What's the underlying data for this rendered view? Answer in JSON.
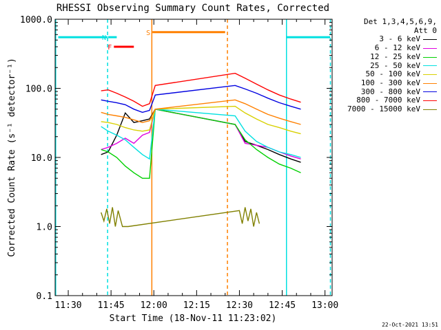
{
  "chart_data": {
    "type": "line",
    "title": "RHESSI Observing Summary Count Rates, Corrected",
    "xlabel": "Start Time (18-Nov-11 11:23:02)",
    "ylabel": "Corrected Count Rate (s⁻¹ detector⁻¹)",
    "yscale": "log",
    "ylim": [
      0.1,
      1000
    ],
    "xlim_minutes_after_1130": [
      -4.6,
      92.5
    ],
    "x_ticks": [
      "11:30",
      "11:45",
      "12:00",
      "12:15",
      "12:30",
      "12:45",
      "13:00"
    ],
    "x_tick_minutes": [
      0,
      15,
      30,
      45,
      60,
      75,
      90
    ],
    "y_ticks": [
      "1000.0",
      "100.0",
      "10.0",
      "1.0",
      "0.1"
    ],
    "y_tick_values": [
      1000,
      100,
      10,
      1,
      0.1
    ],
    "legend_header": [
      "Det 1,3,4,5,6,9,",
      "Att 0"
    ],
    "legend_position": "top-right, outside plot",
    "series": [
      {
        "name": "3 - 6 keV",
        "color": "#000000",
        "x": [
          11.5,
          14,
          17,
          20,
          23,
          26,
          28.5,
          30.5,
          58.5,
          62,
          66,
          70,
          74,
          78,
          81.5
        ],
        "y": [
          11,
          12,
          21,
          44,
          32,
          34,
          36,
          50,
          30,
          17,
          15,
          13,
          11,
          9.5,
          8.5
        ]
      },
      {
        "name": "6 - 12 keV",
        "color": "#e000e0",
        "x": [
          11.5,
          14,
          17,
          20,
          23,
          26,
          28.5,
          30.5,
          58.5,
          62,
          66,
          70,
          74,
          78,
          81.5
        ],
        "y": [
          13,
          14,
          16,
          19,
          16,
          21,
          23,
          50,
          30,
          16,
          15,
          14,
          12,
          10.5,
          9.5
        ]
      },
      {
        "name": "12 - 25 keV",
        "color": "#00d000",
        "x": [
          11.5,
          14,
          17,
          20,
          23,
          26,
          28.5,
          30.5,
          58.5,
          62,
          66,
          70,
          74,
          78,
          81.5
        ],
        "y": [
          13,
          12,
          10,
          7.5,
          6,
          5,
          5,
          50,
          30,
          18,
          13,
          10,
          8,
          7,
          6
        ]
      },
      {
        "name": "25 - 50 keV",
        "color": "#00e0e0",
        "x": [
          11.5,
          14,
          17,
          20,
          23,
          26,
          28.5,
          30.5,
          58.5,
          62,
          66,
          70,
          74,
          78,
          81.5
        ],
        "y": [
          28,
          24,
          21,
          18,
          14,
          11,
          9.5,
          50,
          40,
          24,
          17,
          14,
          12,
          11,
          10
        ]
      },
      {
        "name": "50 - 100 keV",
        "color": "#d8d000",
        "x": [
          11.5,
          14,
          17,
          20,
          23,
          26,
          28.5,
          30.5,
          58.5,
          62,
          66,
          70,
          74,
          78,
          81.5
        ],
        "y": [
          33,
          32,
          30,
          27,
          25,
          24,
          25,
          50,
          55,
          44,
          36,
          30,
          27,
          24,
          22
        ]
      },
      {
        "name": "100 - 300 keV",
        "color": "#ff8000",
        "x": [
          11.5,
          14,
          17,
          20,
          23,
          26,
          28.5,
          30.5,
          58.5,
          62,
          66,
          70,
          74,
          78,
          81.5
        ],
        "y": [
          45,
          42,
          40,
          38,
          35,
          32,
          34,
          50,
          68,
          60,
          50,
          42,
          37,
          33,
          30
        ]
      },
      {
        "name": "300 - 800 keV",
        "color": "#0000e0",
        "x": [
          11.5,
          14,
          17,
          20,
          23,
          26,
          28.5,
          30.5,
          58.5,
          62,
          66,
          70,
          74,
          78,
          81.5
        ],
        "y": [
          68,
          65,
          62,
          58,
          50,
          45,
          48,
          80,
          110,
          98,
          85,
          72,
          62,
          55,
          50
        ]
      },
      {
        "name": "800 - 7000 keV",
        "color": "#ff0000",
        "x": [
          11.5,
          14,
          17,
          20,
          23,
          26,
          28.5,
          30.5,
          58.5,
          62,
          66,
          70,
          74,
          78,
          81.5
        ],
        "y": [
          92,
          95,
          85,
          75,
          65,
          55,
          60,
          110,
          165,
          140,
          115,
          95,
          80,
          70,
          63
        ]
      },
      {
        "name": "7000 - 15000 keV",
        "color": "#808000",
        "x": [
          11.5,
          12.5,
          13.5,
          14.5,
          15.5,
          16.5,
          17.5,
          19,
          21,
          60,
          61,
          62,
          63,
          64,
          65,
          66,
          67
        ],
        "y": [
          1.6,
          1.2,
          1.8,
          1.1,
          1.9,
          1.0,
          1.7,
          1.0,
          1.0,
          1.7,
          1.1,
          1.9,
          1.2,
          1.8,
          1.0,
          1.6,
          1.1
        ]
      }
    ],
    "markers": [
      {
        "label": "N",
        "color": "#00e0e0",
        "value": 550,
        "x": [
          14,
          17
        ]
      },
      {
        "label": "F",
        "color": "#ff0000",
        "value": 400,
        "x": [
          16,
          23
        ]
      },
      {
        "label": "S",
        "color": "#ff8000",
        "value": 650,
        "x": [
          29.5,
          55
        ]
      }
    ],
    "cyan_bars": [
      {
        "value": 550,
        "x": [
          -3.5,
          13.8
        ]
      },
      {
        "value": 550,
        "x": [
          76.5,
          91.8
        ]
      }
    ],
    "vertical_lines": [
      {
        "x": -4.4,
        "color": "#00e0e0",
        "style": "solid"
      },
      {
        "x": 13.8,
        "color": "#00e0e0",
        "style": "dashed"
      },
      {
        "x": 29.3,
        "color": "#ff8000",
        "style": "solid"
      },
      {
        "x": 55.8,
        "color": "#ff8000",
        "style": "dashed"
      },
      {
        "x": 76.5,
        "color": "#00e0e0",
        "style": "solid"
      },
      {
        "x": 91.9,
        "color": "#00e0e0",
        "style": "dashed"
      }
    ]
  },
  "timestamp": "22-Oct-2021 13:51"
}
